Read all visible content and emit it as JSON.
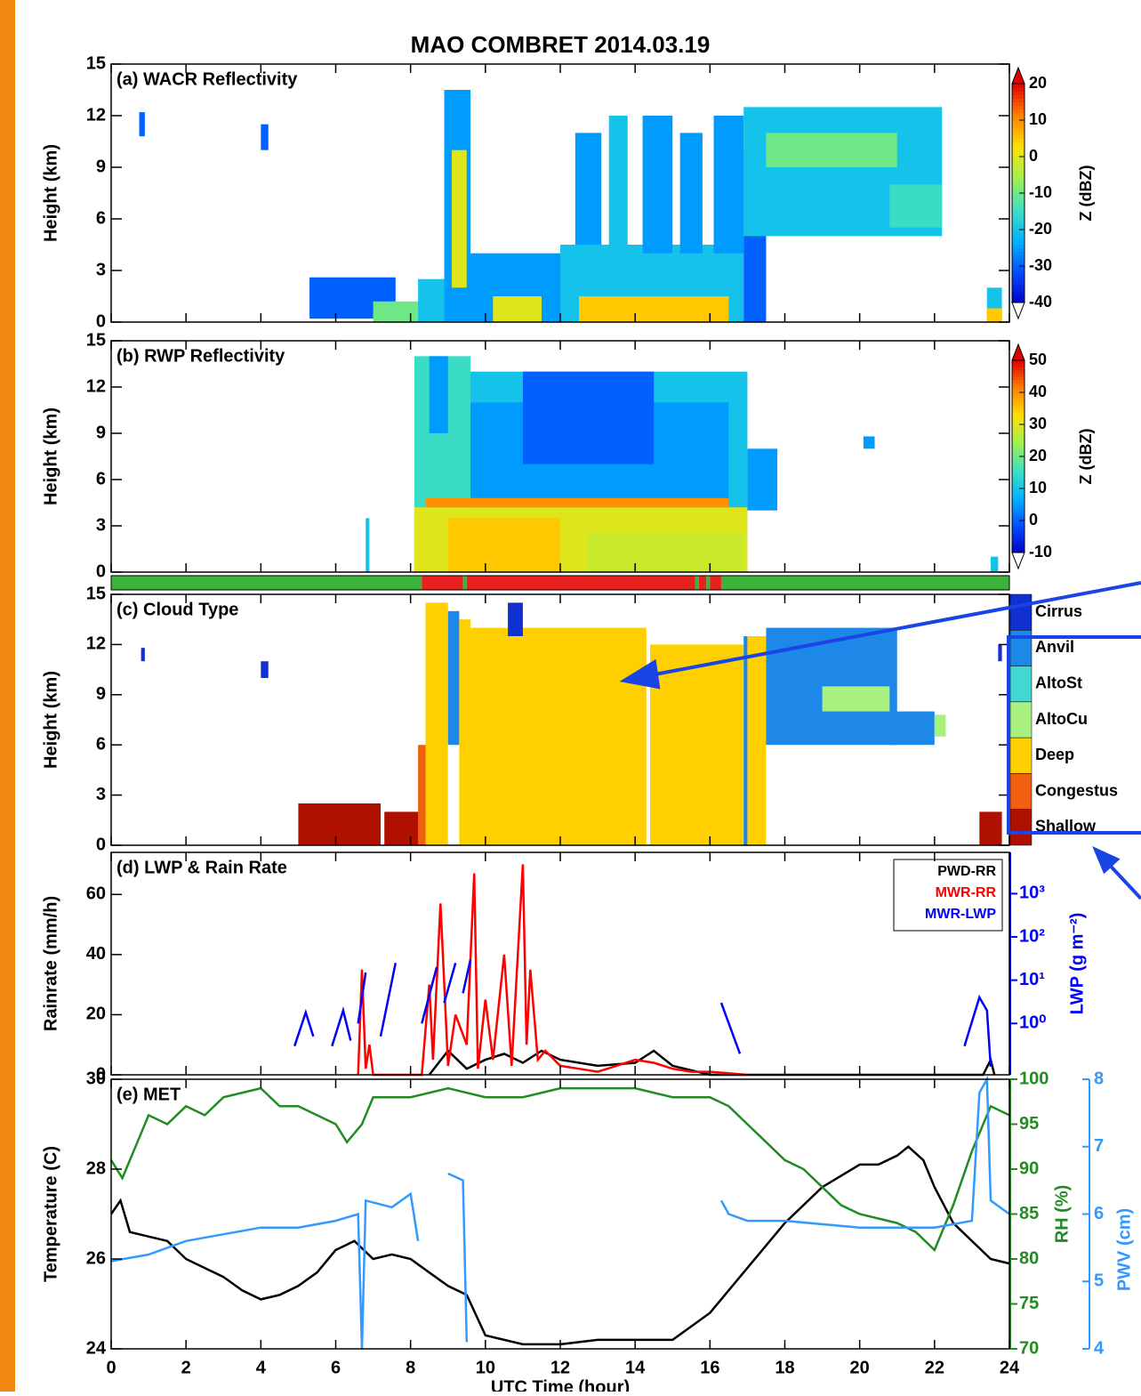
{
  "chart_data": [
    {
      "type": "heatmap",
      "title": "(a) WACR Reflectivity",
      "ylabel": "Height (km)",
      "ylim": [
        0,
        15
      ],
      "yticks": [
        0,
        3,
        6,
        9,
        12,
        15
      ],
      "colorbar": {
        "label": "Z (dBZ)",
        "lim": [
          -40,
          20
        ],
        "ticks": [
          -40,
          -30,
          -20,
          -10,
          0,
          10,
          20
        ],
        "colors": [
          "#0000c8",
          "#0050ff",
          "#00b4ff",
          "#40e0c0",
          "#a0f050",
          "#ffe000",
          "#ff8000",
          "#e00000"
        ]
      },
      "echoes": [
        [
          0.75,
          0.9,
          10.8,
          12.2,
          -30
        ],
        [
          4.0,
          4.2,
          10,
          11.5,
          -30
        ],
        [
          5.3,
          7.6,
          0.2,
          2.6,
          -30
        ],
        [
          7.0,
          8.2,
          0,
          1.2,
          -10
        ],
        [
          8.2,
          8.9,
          0,
          2.5,
          -20
        ],
        [
          8.9,
          9.6,
          0,
          13.5,
          -25
        ],
        [
          9.1,
          9.5,
          2,
          10,
          0
        ],
        [
          9.6,
          12,
          0,
          4,
          -25
        ],
        [
          10.2,
          11.5,
          0,
          1.5,
          0
        ],
        [
          12,
          16.9,
          0,
          4.5,
          -20
        ],
        [
          12.5,
          16.5,
          0,
          1.5,
          5
        ],
        [
          12.4,
          13.1,
          4.5,
          11,
          -25
        ],
        [
          13.3,
          13.8,
          4,
          12,
          -20
        ],
        [
          14.2,
          15,
          4,
          12,
          -25
        ],
        [
          15.2,
          15.8,
          4,
          11,
          -25
        ],
        [
          16.1,
          16.9,
          4,
          12,
          -25
        ],
        [
          16.9,
          17.5,
          0,
          10,
          -30
        ],
        [
          16.9,
          22.2,
          5,
          12.5,
          -20
        ],
        [
          17.5,
          21,
          9,
          11,
          -10
        ],
        [
          20.8,
          22.2,
          5.5,
          8,
          -15
        ],
        [
          23.4,
          23.8,
          0,
          2,
          -20
        ],
        [
          23.4,
          23.8,
          0,
          0.8,
          5
        ]
      ]
    },
    {
      "type": "heatmap",
      "title": "(b) RWP Reflectivity",
      "ylabel": "Height (km)",
      "ylim": [
        0,
        15
      ],
      "yticks": [
        0,
        3,
        6,
        9,
        12,
        15
      ],
      "colorbar": {
        "label": "Z (dBZ)",
        "lim": [
          -10,
          50
        ],
        "ticks": [
          -10,
          0,
          10,
          20,
          30,
          40,
          50
        ],
        "colors": [
          "#0000c8",
          "#0050ff",
          "#00b4ff",
          "#40e0c0",
          "#a0f050",
          "#ffe000",
          "#ff8000",
          "#e00000"
        ]
      },
      "echoes": [
        [
          6.8,
          6.9,
          0,
          3.5,
          10
        ],
        [
          8.1,
          9.6,
          0,
          14,
          15
        ],
        [
          8.5,
          9,
          9,
          14,
          5
        ],
        [
          9.6,
          17.0,
          0,
          13,
          10
        ],
        [
          9.6,
          16.5,
          0,
          11,
          5
        ],
        [
          11,
          14.5,
          7,
          13,
          0
        ],
        [
          17,
          17.8,
          4,
          8,
          5
        ],
        [
          8.1,
          17,
          0,
          4.2,
          30
        ],
        [
          8.4,
          16.5,
          4.2,
          4.8,
          40
        ],
        [
          9,
          12,
          0,
          3.5,
          35
        ],
        [
          12.7,
          16.9,
          0,
          2.5,
          28
        ],
        [
          20.1,
          20.4,
          8,
          8.8,
          5
        ],
        [
          23.5,
          23.7,
          0,
          1,
          10
        ]
      ]
    },
    {
      "type": "classification",
      "title": "(c) Cloud Type",
      "ylabel": "Height (km)",
      "ylim": [
        0,
        15
      ],
      "yticks": [
        0,
        3,
        6,
        9,
        12,
        15
      ],
      "classes": [
        "Cirrus",
        "Anvil",
        "AltoSt",
        "AltoCu",
        "Deep",
        "Congestus",
        "Shallow"
      ],
      "class_colors": [
        "#1030d0",
        "#1e88e8",
        "#40d8d0",
        "#a8f080",
        "#ffd000",
        "#f06010",
        "#b01000"
      ],
      "segments": [
        [
          0.8,
          0.9,
          11,
          11.8,
          0
        ],
        [
          4.0,
          4.2,
          10,
          11,
          0
        ],
        [
          5.0,
          7.2,
          0,
          2.5,
          6
        ],
        [
          7.3,
          8.3,
          0,
          2,
          6
        ],
        [
          8.2,
          8.4,
          0,
          6,
          5
        ],
        [
          8.4,
          9.0,
          0,
          14.5,
          4
        ],
        [
          9.0,
          9.3,
          6,
          14,
          1
        ],
        [
          9.3,
          9.6,
          0,
          13.5,
          4
        ],
        [
          9.6,
          14.3,
          0,
          13,
          4
        ],
        [
          10.6,
          11,
          12.5,
          14.5,
          0
        ],
        [
          14.4,
          16.9,
          0,
          12,
          4
        ],
        [
          16.9,
          17,
          0,
          12.5,
          1
        ],
        [
          17,
          17.5,
          0,
          12.5,
          4
        ],
        [
          17.5,
          21,
          6,
          13,
          1
        ],
        [
          19,
          20.8,
          8,
          9.5,
          3
        ],
        [
          20.8,
          22,
          6,
          8,
          1
        ],
        [
          22,
          22.3,
          6.5,
          7.8,
          3
        ],
        [
          23.2,
          23.8,
          0,
          2,
          6
        ],
        [
          23.7,
          23.8,
          11,
          12,
          0
        ]
      ],
      "rain_flag": {
        "edges": [
          0,
          8.3,
          9.4,
          9.5,
          15.6,
          15.7,
          15.9,
          16.0,
          16.3,
          24
        ],
        "values": [
          0,
          1,
          0,
          1,
          0,
          1,
          0,
          1,
          0
        ],
        "colors": [
          "#3cb43c",
          "#e82020"
        ]
      }
    },
    {
      "type": "line",
      "title": "(d) LWP & Rain Rate",
      "ylabel": "Rainrate (mm/h)",
      "ylim": [
        0,
        74
      ],
      "yticks": [
        0,
        20,
        40,
        60
      ],
      "y2label": "LWP (g m⁻²)",
      "y2color": "#0000ff",
      "y2scale": "log",
      "y2lim": [
        0.065,
        9000
      ],
      "y2ticks": [
        {
          "value": 1,
          "label": "10⁰"
        },
        {
          "value": 10,
          "label": "10¹"
        },
        {
          "value": 100,
          "label": "10²"
        },
        {
          "value": 1000,
          "label": "10³"
        }
      ],
      "legend": "upper right",
      "series": [
        {
          "name": "PWD-RR",
          "color": "#000000",
          "x": [
            8.5,
            9,
            9.5,
            10,
            10.5,
            11,
            11.5,
            12,
            13,
            14,
            14.5,
            15,
            16,
            23.3,
            23.5,
            23.6
          ],
          "values": [
            0,
            8,
            2,
            5,
            7,
            4,
            8,
            5,
            3,
            4,
            8,
            3,
            0,
            0,
            5,
            0
          ]
        },
        {
          "name": "MWR-RR",
          "color": "#ff0000",
          "x": [
            6.6,
            6.7,
            6.8,
            6.9,
            7.0,
            8.3,
            8.5,
            8.6,
            8.8,
            9.0,
            9.2,
            9.5,
            9.7,
            9.8,
            10.0,
            10.2,
            10.5,
            10.7,
            11.0,
            11.1,
            11.2,
            11.4,
            11.6,
            12,
            12.5,
            13,
            13.5,
            14,
            14.5,
            15,
            15.5,
            16,
            16.5,
            17
          ],
          "values": [
            0,
            35,
            2,
            10,
            0,
            0,
            30,
            5,
            57,
            3,
            20,
            10,
            67,
            2,
            25,
            5,
            40,
            3,
            70,
            10,
            35,
            5,
            8,
            3,
            2,
            1,
            3,
            5,
            4,
            2,
            1,
            1,
            0.5,
            0
          ]
        },
        {
          "name": "MWR-LWP",
          "color": "#0000ff",
          "axis": "y2",
          "x": [
            4.9,
            5.2,
            5.4,
            5.5,
            5.9,
            6.2,
            6.4,
            6.5,
            6.6,
            6.8,
            6.9,
            7.2,
            7.6,
            7.7,
            8.3,
            8.7,
            8.8,
            8.9,
            9.2,
            9.3,
            9.4,
            9.6,
            9.7,
            16.3,
            16.8,
            16.9,
            22.8,
            23.2,
            23.4,
            23.5
          ],
          "values": [
            0.3,
            1.8,
            0.5,
            null,
            0.3,
            2,
            0.4,
            null,
            1,
            15,
            null,
            0.5,
            25,
            null,
            1,
            20,
            null,
            3,
            25,
            null,
            5,
            30,
            null,
            3,
            0.2,
            null,
            0.3,
            4,
            2,
            0.1
          ]
        }
      ]
    },
    {
      "type": "line",
      "title": "(e) MET",
      "ylabel": "Temperature (C)",
      "ylim": [
        24,
        30
      ],
      "yticks": [
        24,
        26,
        28,
        30
      ],
      "xlabel": "UTC Time (hour)",
      "xlim": [
        0,
        24
      ],
      "xticks": [
        0,
        2,
        4,
        6,
        8,
        10,
        12,
        14,
        16,
        18,
        20,
        22,
        24
      ],
      "y2label": "RH (%)",
      "y2color": "#228b22",
      "y2lim": [
        70,
        100
      ],
      "y2ticks": [
        70,
        75,
        80,
        85,
        90,
        95,
        100
      ],
      "y3label": "PWV (cm)",
      "y3color": "#3399ff",
      "y3lim": [
        4,
        8
      ],
      "y3ticks": [
        4,
        5,
        6,
        7,
        8
      ],
      "series": [
        {
          "color": "#000000",
          "x": [
            0,
            0.25,
            0.5,
            1,
            1.5,
            2,
            2.5,
            3,
            3.5,
            4,
            4.5,
            5,
            5.5,
            6,
            6.5,
            7,
            7.5,
            8,
            8.5,
            9,
            9.5,
            10,
            10.5,
            11,
            12,
            13,
            14,
            15,
            16,
            17,
            18,
            19,
            20,
            20.5,
            21,
            21.3,
            21.7,
            22,
            22.5,
            23,
            23.5,
            24
          ],
          "values": [
            27.0,
            27.3,
            26.6,
            26.5,
            26.4,
            26.0,
            25.8,
            25.6,
            25.3,
            25.1,
            25.2,
            25.4,
            25.7,
            26.2,
            26.4,
            26.0,
            26.1,
            26.0,
            25.7,
            25.4,
            25.2,
            24.3,
            24.2,
            24.1,
            24.1,
            24.2,
            24.2,
            24.2,
            24.8,
            25.8,
            26.8,
            27.6,
            28.1,
            28.1,
            28.3,
            28.5,
            28.2,
            27.6,
            26.8,
            26.4,
            26.0,
            25.9
          ]
        },
        {
          "color": "#228b22",
          "axis": "y2",
          "x": [
            0,
            0.3,
            0.7,
            1,
            1.5,
            2,
            2.5,
            3,
            4,
            4.5,
            5,
            5.5,
            6,
            6.3,
            6.7,
            7,
            8,
            9,
            10,
            11,
            12,
            13,
            14,
            15,
            16,
            16.5,
            17,
            17.5,
            18,
            18.5,
            19,
            19.5,
            20,
            21,
            21.5,
            22,
            22.5,
            23,
            23.5,
            24
          ],
          "values": [
            91,
            89,
            93,
            96,
            95,
            97,
            96,
            98,
            99,
            97,
            97,
            96,
            95,
            93,
            95,
            98,
            98,
            99,
            98,
            98,
            99,
            99,
            99,
            98,
            98,
            97,
            95,
            93,
            91,
            90,
            88,
            86,
            85,
            84,
            83,
            81,
            86,
            92,
            97,
            96
          ]
        },
        {
          "color": "#3399ff",
          "axis": "y3",
          "x": [
            0,
            1,
            2,
            3,
            4,
            5,
            6,
            6.6,
            6.7,
            6.8,
            7.5,
            8,
            8.2,
            8.3,
            9,
            9.4,
            9.5,
            9.6,
            16.3,
            16.5,
            17,
            18,
            20,
            22,
            23,
            23.2,
            23.4,
            23.5,
            24
          ],
          "values": [
            5.3,
            5.4,
            5.6,
            5.7,
            5.8,
            5.8,
            5.9,
            6.0,
            4.0,
            6.2,
            6.1,
            6.3,
            5.6,
            null,
            6.6,
            6.5,
            4.1,
            null,
            6.2,
            6.0,
            5.9,
            5.9,
            5.8,
            5.8,
            5.9,
            7.8,
            8.0,
            6.2,
            6.0
          ]
        }
      ]
    }
  ],
  "title": "MAO COMBRET  2014.03.19"
}
